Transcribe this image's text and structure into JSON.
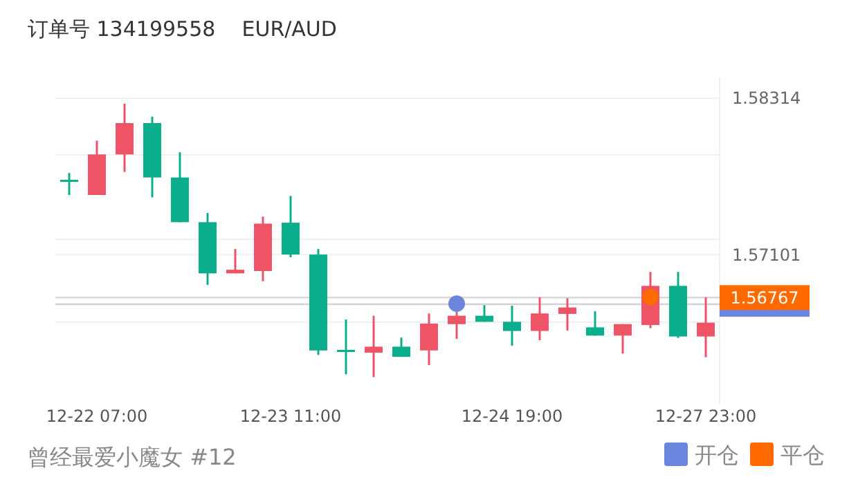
{
  "chart_data": {
    "type": "candlestick",
    "title": "订单号 134199558    EUR/AUD",
    "categories": [
      null,
      "12-22 07:00",
      null,
      null,
      null,
      null,
      null,
      null,
      "12-23 11:00",
      null,
      null,
      null,
      null,
      null,
      null,
      null,
      "12-24 19:00",
      null,
      null,
      null,
      null,
      null,
      null,
      "12-27 23:00"
    ],
    "ohlc": [
      [
        1.57681,
        1.57734,
        1.57563,
        1.57667
      ],
      [
        1.57563,
        1.57985,
        1.57563,
        1.57878
      ],
      [
        1.57878,
        1.58271,
        1.57742,
        1.58121
      ],
      [
        1.58121,
        1.58171,
        1.57545,
        1.57699
      ],
      [
        1.57699,
        1.57895,
        1.57352,
        1.57352
      ],
      [
        1.57352,
        1.57423,
        1.56865,
        1.56955
      ],
      [
        1.56955,
        1.57144,
        1.56955,
        1.56983
      ],
      [
        1.56973,
        1.57395,
        1.56894,
        1.57341
      ],
      [
        1.57348,
        1.57556,
        1.5708,
        1.57101
      ],
      [
        1.57101,
        1.57144,
        1.56322,
        1.56357
      ],
      [
        1.56361,
        1.56597,
        1.56171,
        1.56347
      ],
      [
        1.56339,
        1.56626,
        1.5615,
        1.56386
      ],
      [
        1.56386,
        1.56457,
        1.56307,
        1.56307
      ],
      [
        1.56357,
        1.56644,
        1.56243,
        1.56565
      ],
      [
        1.56561,
        1.56679,
        1.56447,
        1.56626
      ],
      [
        1.56626,
        1.56708,
        1.56579,
        1.56579
      ],
      [
        1.56579,
        1.56704,
        1.56393,
        1.56508
      ],
      [
        1.56508,
        1.56769,
        1.56436,
        1.56644
      ],
      [
        1.5664,
        1.56762,
        1.56511,
        1.5669
      ],
      [
        1.56536,
        1.56661,
        1.56472,
        1.56472
      ],
      [
        1.56472,
        1.56561,
        1.56332,
        1.56561
      ],
      [
        1.56554,
        1.56966,
        1.56529,
        1.56858
      ],
      [
        1.56858,
        1.56966,
        1.56454,
        1.56465
      ],
      [
        1.56465,
        1.56769,
        1.56304,
        1.56572
      ]
    ],
    "colors": [
      "#0aae8c",
      "#ef5466",
      "#ef5466",
      "#0aae8c",
      "#0aae8c",
      "#0aae8c",
      "#ef5466",
      "#ef5466",
      "#0aae8c",
      "#0aae8c",
      "#0aae8c",
      "#ef5466",
      "#0aae8c",
      "#ef5466",
      "#ef5466",
      "#0aae8c",
      "#0aae8c",
      "#ef5466",
      "#ef5466",
      "#0aae8c",
      "#ef5466",
      "#ef5466",
      "#0aae8c",
      "#ef5466"
    ],
    "series": [
      {
        "type": "scatter",
        "name": "开仓",
        "color": "#6b85de",
        "values": [
          null,
          null,
          null,
          null,
          null,
          null,
          null,
          null,
          null,
          null,
          null,
          null,
          null,
          null,
          1.5672,
          null,
          null,
          null,
          null,
          null,
          null,
          null,
          null,
          null
        ]
      },
      {
        "type": "scatter",
        "name": "平仓",
        "color": "#ff6a00",
        "values": [
          null,
          null,
          null,
          null,
          null,
          null,
          null,
          null,
          null,
          null,
          null,
          null,
          null,
          null,
          null,
          null,
          null,
          null,
          null,
          null,
          null,
          1.5677,
          null,
          null
        ]
      }
    ],
    "ylim": [
      1.55932,
      1.58486
    ],
    "yticks": [
      1.58314,
      {
        "value": 1.57874,
        "label": null
      },
      1.57101,
      {
        "value": 1.57219,
        "label": null
      },
      {
        "value": 1.56576,
        "label": null
      }
    ],
    "grid": "y",
    "legend": "bottom right",
    "marker": "circle",
    "ref_lines": [
      {
        "axis": "y",
        "value": 1.56715
      },
      {
        "axis": "y",
        "value": 1.56767,
        "label": "1.56767"
      }
    ],
    "annotations": [
      "曾经最爱小魔女 #12"
    ]
  }
}
